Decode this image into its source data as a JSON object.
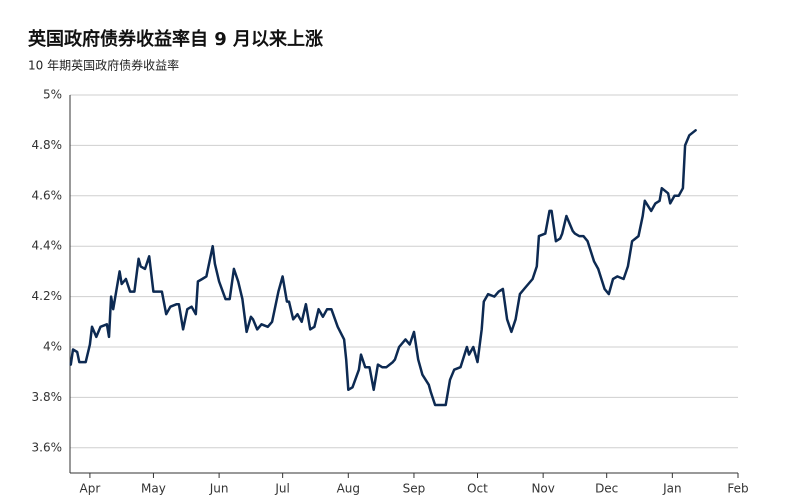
{
  "chart_data": {
    "type": "line",
    "title": "英国政府债券收益率自 9 月以来上涨",
    "subtitle": "10 年期英国政府债券收益率",
    "color": "#0d2a52",
    "x": [
      -9,
      -8,
      -6,
      -5,
      -2,
      0,
      1,
      3,
      5,
      8,
      9,
      10,
      11,
      14,
      15,
      17,
      19,
      21,
      23,
      24,
      26,
      28,
      30,
      32,
      34,
      36,
      38,
      41,
      42,
      44,
      46,
      48,
      50,
      51,
      53,
      55,
      58,
      59,
      61,
      64,
      66,
      68,
      70,
      72,
      74,
      76,
      77,
      79,
      81,
      84,
      86,
      89,
      91,
      93,
      94,
      96,
      98,
      100,
      102,
      104,
      106,
      108,
      110,
      112,
      114,
      117,
      120,
      121,
      122,
      124,
      127,
      128,
      130,
      132,
      134,
      136,
      138,
      140,
      143,
      144,
      146,
      149,
      151,
      153,
      155,
      157,
      160,
      161,
      163,
      166,
      168,
      170,
      172,
      175,
      178,
      179,
      181,
      183,
      185,
      186,
      188,
      191,
      193,
      195,
      197,
      199,
      201,
      203,
      205,
      209,
      211,
      212,
      215,
      217,
      218,
      220,
      222,
      223,
      225,
      228,
      229,
      231,
      233,
      235,
      238,
      240,
      243,
      245,
      247,
      249,
      252,
      254,
      256,
      259,
      261,
      262,
      265,
      267,
      269,
      270,
      273,
      274,
      276,
      278,
      280,
      281,
      283,
      286
    ],
    "values": [
      3.93,
      3.99,
      3.98,
      3.94,
      3.94,
      4.01,
      4.08,
      4.04,
      4.08,
      4.09,
      4.04,
      4.2,
      4.15,
      4.3,
      4.25,
      4.27,
      4.22,
      4.22,
      4.35,
      4.32,
      4.31,
      4.36,
      4.22,
      4.22,
      4.22,
      4.13,
      4.16,
      4.17,
      4.17,
      4.07,
      4.15,
      4.16,
      4.13,
      4.26,
      4.27,
      4.28,
      4.4,
      4.33,
      4.26,
      4.19,
      4.19,
      4.31,
      4.26,
      4.19,
      4.06,
      4.12,
      4.11,
      4.07,
      4.09,
      4.08,
      4.1,
      4.22,
      4.28,
      4.18,
      4.18,
      4.11,
      4.13,
      4.1,
      4.17,
      4.07,
      4.08,
      4.15,
      4.12,
      4.15,
      4.15,
      4.08,
      4.03,
      3.95,
      3.83,
      3.84,
      3.91,
      3.97,
      3.92,
      3.92,
      3.83,
      3.93,
      3.92,
      3.92,
      3.94,
      3.95,
      4.0,
      4.03,
      4.01,
      4.06,
      3.95,
      3.89,
      3.85,
      3.82,
      3.77,
      3.77,
      3.77,
      3.87,
      3.91,
      3.92,
      4.0,
      3.97,
      4.0,
      3.94,
      4.07,
      4.18,
      4.21,
      4.2,
      4.22,
      4.23,
      4.11,
      4.06,
      4.11,
      4.21,
      4.23,
      4.27,
      4.32,
      4.44,
      4.45,
      4.54,
      4.54,
      4.42,
      4.43,
      4.45,
      4.52,
      4.46,
      4.45,
      4.44,
      4.44,
      4.42,
      4.34,
      4.31,
      4.23,
      4.21,
      4.27,
      4.28,
      4.27,
      4.32,
      4.42,
      4.44,
      4.52,
      4.58,
      4.54,
      4.57,
      4.58,
      4.63,
      4.61,
      4.57,
      4.6,
      4.6,
      4.63,
      4.8,
      4.84,
      4.86
    ],
    "xlim": [
      -9.4,
      306
    ],
    "xticks": [
      {
        "value": 0,
        "label": "Apr"
      },
      {
        "value": 30,
        "label": "May"
      },
      {
        "value": 61,
        "label": "Jun"
      },
      {
        "value": 91,
        "label": "Jul"
      },
      {
        "value": 122,
        "label": "Aug"
      },
      {
        "value": 153,
        "label": "Sep"
      },
      {
        "value": 183,
        "label": "Oct"
      },
      {
        "value": 214,
        "label": "Nov"
      },
      {
        "value": 244,
        "label": "Dec"
      },
      {
        "value": 275,
        "label": "Jan"
      },
      {
        "value": 306,
        "label": "Feb"
      }
    ],
    "ylim": [
      3.5,
      5
    ],
    "yticks": [
      {
        "value": 3.6,
        "label": "3.6%"
      },
      {
        "value": 3.8,
        "label": "3.8%"
      },
      {
        "value": 4,
        "label": "4%"
      },
      {
        "value": 4.2,
        "label": "4.2%"
      },
      {
        "value": 4.4,
        "label": "4.4%"
      },
      {
        "value": 4.6,
        "label": "4.6%"
      },
      {
        "value": 4.8,
        "label": "4.8%"
      },
      {
        "value": 5,
        "label": "5%"
      }
    ],
    "grid": true
  }
}
